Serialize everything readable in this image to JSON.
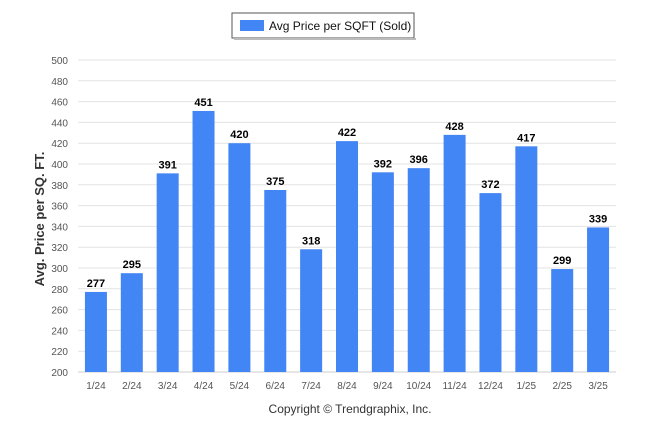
{
  "legend": {
    "label": "Avg Price per SQFT (Sold)",
    "placement": "top-center"
  },
  "footer": {
    "copyright": "Copyright © Trendgraphix, Inc."
  },
  "colors": {
    "bar": "#4285f4",
    "grid": "#e3e3e3",
    "axis_text": "#555555",
    "label_text": "#000000"
  },
  "chart_data": {
    "type": "bar",
    "categories": [
      "1/24",
      "2/24",
      "3/24",
      "4/24",
      "5/24",
      "6/24",
      "7/24",
      "8/24",
      "9/24",
      "10/24",
      "11/24",
      "12/24",
      "1/25",
      "2/25",
      "3/25"
    ],
    "series": [
      {
        "name": "Avg Price per SQFT (Sold)",
        "values": [
          277,
          295,
          391,
          451,
          420,
          375,
          318,
          422,
          392,
          396,
          428,
          372,
          417,
          299,
          339
        ]
      }
    ],
    "data_labels": [
      "277",
      "295",
      "391",
      "451",
      "420",
      "375",
      "318",
      "422",
      "392",
      "396",
      "428",
      "372",
      "417",
      "299",
      "339"
    ],
    "ylabel": "Avg. Price per SQ. FT.",
    "xlabel": "",
    "ylim": [
      200,
      500
    ],
    "yticks": [
      "200",
      "220",
      "240",
      "260",
      "280",
      "300",
      "320",
      "340",
      "360",
      "380",
      "400",
      "420",
      "440",
      "460",
      "480",
      "500"
    ],
    "grid": true
  }
}
